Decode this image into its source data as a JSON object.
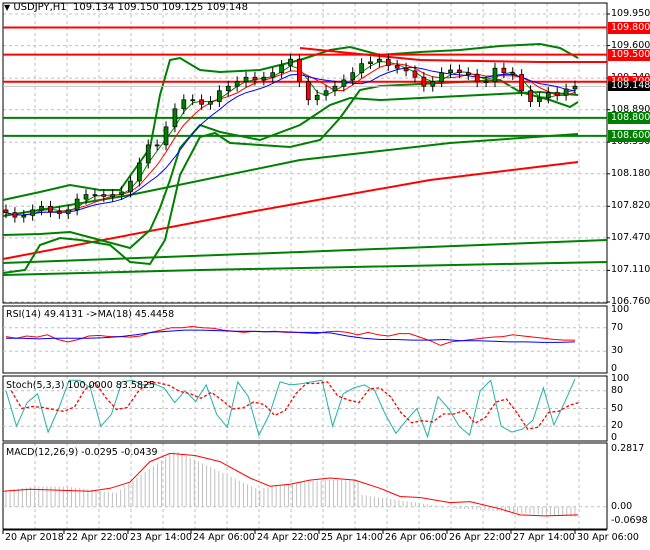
{
  "header": {
    "symbol": "USDJPY,H1",
    "ohlc": "109.134 109.150 109.125 109.148",
    "arrow_icon": "triangle-down"
  },
  "colors": {
    "resistance": "#ff0000",
    "support": "#008000",
    "bollinger": "#008000",
    "ma_fast": "#008000",
    "ma_mid": "#ff0000",
    "ma_slow": "#0000ff",
    "rsi": "#ff0000",
    "rsi_ma": "#0000ff",
    "stoch_main": "#20b2aa",
    "stoch_signal": "#ff0000",
    "macd_hist": "#c0c0c0",
    "macd_signal": "#ff0000",
    "current_price_bg": "#000000",
    "grid": "#c0c0c0"
  },
  "price_axis": {
    "ticks": [
      "109.950",
      "109.600",
      "109.240",
      "108.890",
      "108.530",
      "108.180",
      "107.820",
      "107.470",
      "107.110",
      "106.760"
    ],
    "current_price": "109.148"
  },
  "levels": [
    {
      "label": "109.800",
      "value": 109.8,
      "type": "resistance"
    },
    {
      "label": "109.500",
      "value": 109.5,
      "type": "resistance"
    },
    {
      "label": "109.200",
      "value": 109.2,
      "type": "resistance"
    },
    {
      "label": "108.800",
      "value": 108.8,
      "type": "support"
    },
    {
      "label": "108.600",
      "value": 108.6,
      "type": "support"
    }
  ],
  "rsi_panel": {
    "label": "RSI(14) 49.4131   ->MA(18) 45.4458",
    "ticks": [
      "100",
      "70",
      "30",
      "0"
    ]
  },
  "stoch_panel": {
    "label": "Stoch(5,3,3) 100.0000 83.5825",
    "ticks": [
      "100",
      "80",
      "50",
      "20",
      "0"
    ]
  },
  "macd_panel": {
    "label": "MACD(12,26,9) -0.0295 -0.0439",
    "ticks": [
      "0.2817",
      "0.00",
      "-0.0698"
    ]
  },
  "time_axis": {
    "labels": [
      "20 Apr 2018",
      "22 Apr 22:00",
      "23 Apr 14:00",
      "24 Apr 06:00",
      "24 Apr 22:00",
      "25 Apr 14:00",
      "26 Apr 06:00",
      "26 Apr 22:00",
      "27 Apr 14:00",
      "30 Apr 06:00"
    ]
  },
  "chart_data": {
    "type": "candlestick",
    "title": "USDJPY,H1",
    "ohlc_last": {
      "open": 109.134,
      "high": 109.15,
      "low": 109.125,
      "close": 109.148
    },
    "ylim": [
      106.76,
      109.95
    ],
    "x_labels": [
      "20 Apr 2018",
      "22 Apr 22:00",
      "23 Apr 14:00",
      "24 Apr 06:00",
      "24 Apr 22:00",
      "25 Apr 14:00",
      "26 Apr 06:00",
      "26 Apr 22:00",
      "27 Apr 14:00",
      "30 Apr 06:00"
    ],
    "close_approx": [
      107.75,
      107.7,
      107.72,
      107.78,
      107.82,
      107.76,
      107.74,
      107.78,
      107.9,
      107.95,
      107.95,
      107.93,
      107.95,
      107.98,
      108.1,
      108.3,
      108.5,
      108.5,
      108.7,
      108.9,
      109.0,
      109.0,
      108.95,
      108.98,
      109.1,
      109.15,
      109.2,
      109.25,
      109.22,
      109.25,
      109.3,
      109.38,
      109.45,
      109.2,
      109.0,
      109.05,
      109.1,
      109.15,
      109.22,
      109.3,
      109.4,
      109.42,
      109.45,
      109.38,
      109.35,
      109.32,
      109.25,
      109.15,
      109.2,
      109.3,
      109.33,
      109.3,
      109.28,
      109.2,
      109.2,
      109.35,
      109.3,
      109.28,
      109.1,
      108.98,
      109.02,
      109.08,
      109.05,
      109.12,
      109.15
    ],
    "horizontal_levels": [
      109.8,
      109.5,
      109.2,
      108.8,
      108.6
    ],
    "indicators": {
      "rsi": {
        "period": 14,
        "value": 49.4131,
        "ma_period": 18,
        "ma_value": 45.4458,
        "ylim": [
          0,
          100
        ]
      },
      "stochastic": {
        "params": [
          5,
          3,
          3
        ],
        "main": 100.0,
        "signal": 83.5825,
        "ylim": [
          0,
          100
        ]
      },
      "macd": {
        "params": [
          12,
          26,
          9
        ],
        "main": -0.0295,
        "signal": -0.0439,
        "ylim": [
          -0.0698,
          0.2817
        ]
      }
    }
  }
}
